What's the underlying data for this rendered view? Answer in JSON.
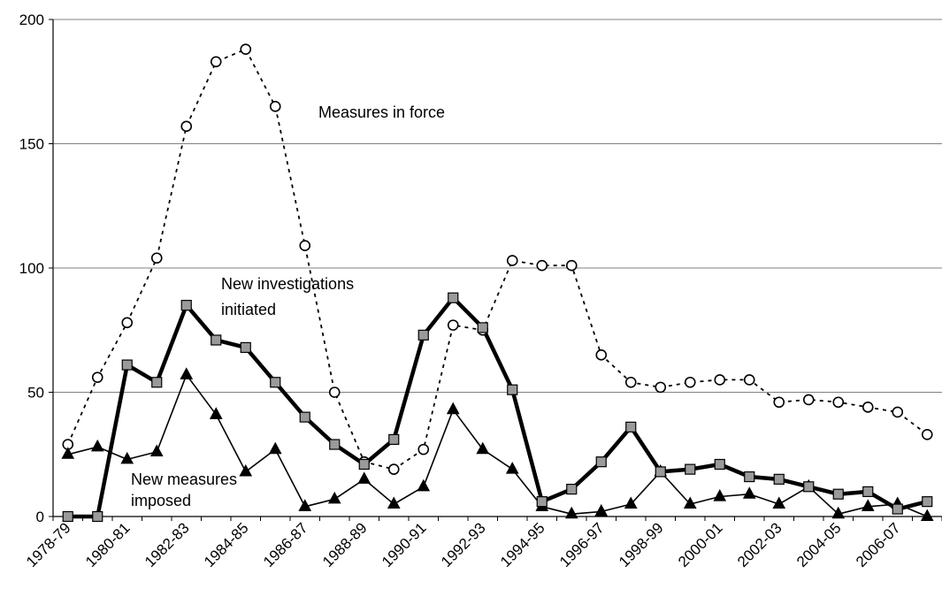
{
  "chart_data": {
    "type": "line",
    "x": [
      "1978-79",
      "1979-80",
      "1980-81",
      "1981-82",
      "1982-83",
      "1983-84",
      "1984-85",
      "1985-86",
      "1986-87",
      "1987-88",
      "1988-89",
      "1989-90",
      "1990-91",
      "1991-92",
      "1992-93",
      "1993-94",
      "1994-95",
      "1995-96",
      "1996-97",
      "1997-98",
      "1998-99",
      "1999-00",
      "2000-01",
      "2001-02",
      "2002-03",
      "2003-04",
      "2004-05",
      "2005-06",
      "2006-07",
      "2007-08"
    ],
    "x_tick_labels": [
      "1978-79",
      "1980-81",
      "1982-83",
      "1984-85",
      "1986-87",
      "1988-89",
      "1990-91",
      "1992-93",
      "1994-95",
      "1996-97",
      "1998-99",
      "2000-01",
      "2002-03",
      "2004-05",
      "2006-07"
    ],
    "y_ticks": [
      "0",
      "50",
      "100",
      "150",
      "200"
    ],
    "ylim": [
      0,
      200
    ],
    "grid": "horizontal",
    "legend": "none",
    "series": [
      {
        "key": "measures_in_force",
        "style": "dotted-open-circle",
        "color": "#000000",
        "values": [
          29,
          56,
          78,
          104,
          157,
          183,
          188,
          165,
          109,
          50,
          22,
          19,
          27,
          77,
          75,
          103,
          101,
          101,
          65,
          54,
          52,
          54,
          55,
          55,
          46,
          47,
          46,
          44,
          42,
          33
        ]
      },
      {
        "key": "new_investigations",
        "style": "thick-grey-square",
        "color": "#000000",
        "marker_fill": "#9a9a9a",
        "values": [
          0,
          0,
          61,
          54,
          85,
          71,
          68,
          54,
          40,
          29,
          21,
          31,
          73,
          88,
          76,
          51,
          6,
          11,
          22,
          36,
          18,
          19,
          21,
          16,
          15,
          12,
          9,
          10,
          3,
          6
        ]
      },
      {
        "key": "new_measures",
        "style": "thin-filled-triangle",
        "color": "#000000",
        "values": [
          25,
          28,
          23,
          26,
          57,
          41,
          18,
          27,
          4,
          7,
          15,
          5,
          12,
          43,
          27,
          19,
          4,
          1,
          2,
          5,
          18,
          5,
          8,
          9,
          5,
          12,
          1,
          4,
          5,
          0
        ]
      }
    ],
    "annotations": {
      "measures_in_force": [
        "Measures in force"
      ],
      "new_investigations": [
        "New investigations",
        "initiated"
      ],
      "new_measures": [
        "New measures",
        "imposed"
      ]
    }
  }
}
